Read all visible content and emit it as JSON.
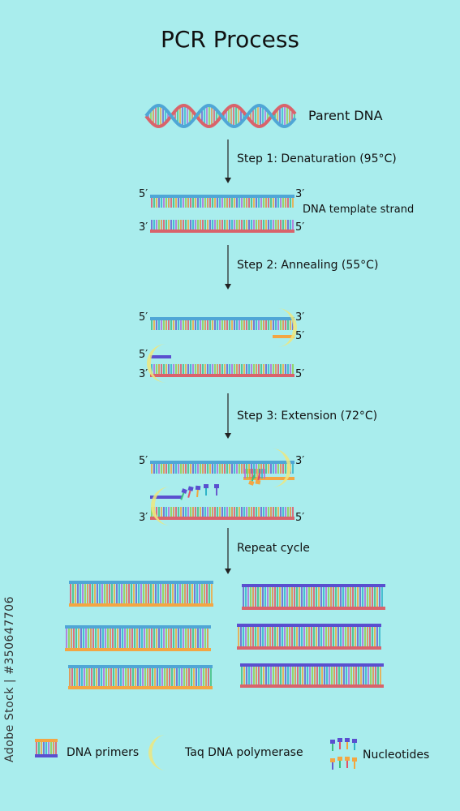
{
  "title": "PCR Process",
  "parent_label": "Parent DNA",
  "steps": [
    {
      "label": "Step 1: Denaturation (95°C)"
    },
    {
      "label": "Step 2: Annealing (55°C)"
    },
    {
      "label": "Step 3: Extension (72°C)"
    },
    {
      "label": "Repeat cycle"
    }
  ],
  "template_label": "DNA template strand",
  "ends": {
    "five": "5′",
    "three": "3′"
  },
  "legend": {
    "primers": "DNA primers",
    "polymerase": "Taq DNA polymerase",
    "nucleotides": "Nucleotides"
  },
  "watermark": "Adobe Stock | #350647706",
  "colors": {
    "background": "#a9eded",
    "strand_blue": "#4fa6d6",
    "strand_red": "#d9636b",
    "primer_purple": "#5a4fcf",
    "primer_orange": "#f3a643",
    "polymerase": "#efe67d"
  }
}
